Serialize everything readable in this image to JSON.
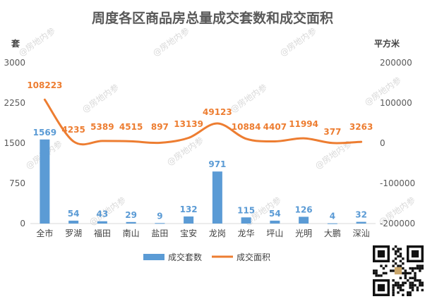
{
  "chart_data": {
    "type": "bar+line",
    "title": "周度各区商品房总量成交套数和成交面积",
    "left_axis_label": "套",
    "right_axis_label": "平方米",
    "categories": [
      "全市",
      "罗湖",
      "福田",
      "南山",
      "盐田",
      "宝安",
      "龙岗",
      "龙华",
      "坪山",
      "光明",
      "大鹏",
      "深汕"
    ],
    "left_ylim": [
      0,
      3000
    ],
    "left_ticks": [
      "0",
      "750",
      "1500",
      "2250",
      "3000"
    ],
    "right_ylim": [
      -200000,
      200000
    ],
    "right_ticks": [
      "-200000",
      "-100000",
      "0",
      "100000",
      "200000"
    ],
    "series": [
      {
        "name": "成交套数",
        "type": "bar",
        "axis": "left",
        "color": "#5b9bd5",
        "values": [
          1569,
          54,
          43,
          29,
          9,
          132,
          971,
          115,
          54,
          126,
          4,
          32
        ],
        "labels": [
          "1569",
          "54",
          "43",
          "29",
          "9",
          "132",
          "971",
          "115",
          "54",
          "126",
          "4",
          "32"
        ]
      },
      {
        "name": "成交面积",
        "type": "line",
        "axis": "right",
        "color": "#ed7d31",
        "values": [
          108223,
          4235,
          5389,
          4515,
          897,
          13139,
          49123,
          10884,
          4407,
          11994,
          377,
          3263
        ],
        "labels": [
          "108223",
          "4235",
          "5389",
          "4515",
          "897",
          "13139",
          "49123",
          "10884",
          "4407",
          "11994",
          "377",
          "3263"
        ]
      }
    ],
    "grid": false,
    "legend_position": "bottom"
  },
  "watermark": {
    "text": "@房地内参"
  },
  "qr": {
    "icon": "qr-code-icon"
  }
}
